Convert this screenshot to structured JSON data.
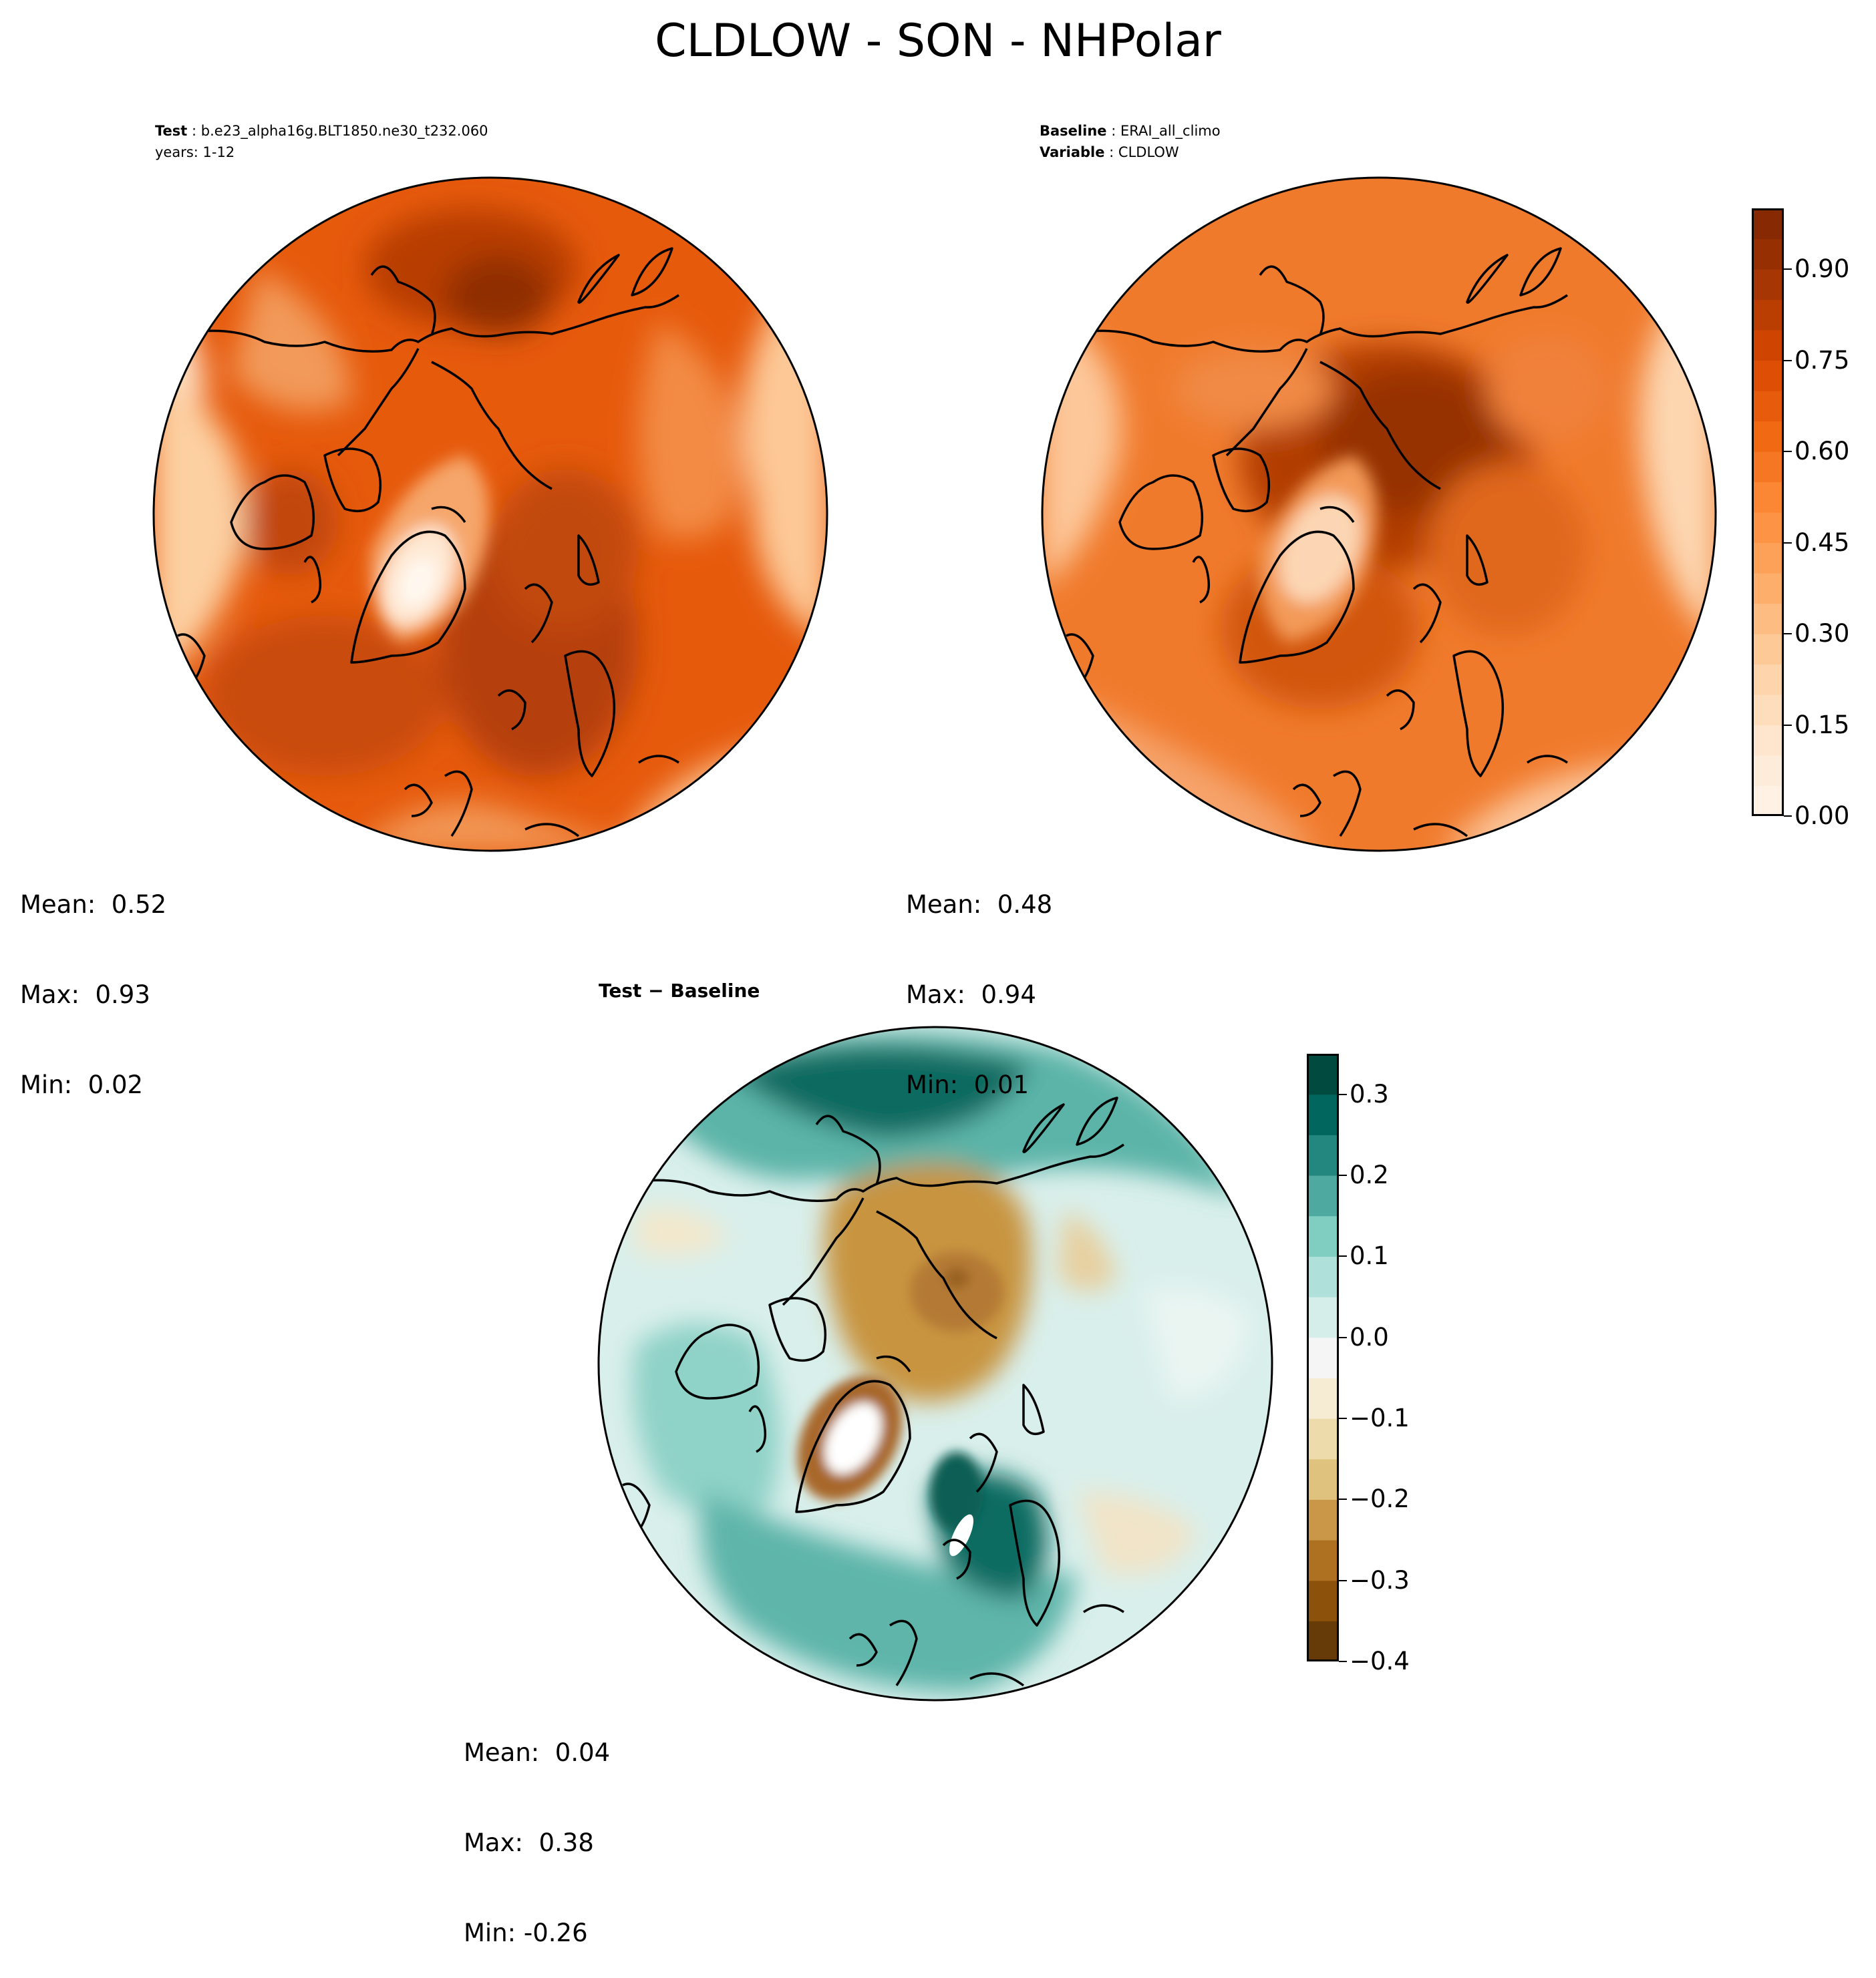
{
  "title": "CLDLOW - SON - NHPolar",
  "panels": {
    "test": {
      "line1_label": "Test",
      "line1_value": "b.e23_alpha16g.BLT1850.ne30_t232.060",
      "line2": "years: 1-12",
      "stats": {
        "mean": "Mean:  0.52",
        "max": "Max:  0.93",
        "min": "Min:  0.02"
      }
    },
    "baseline": {
      "line1_label": "Baseline",
      "line1_value": "ERAI_all_climo",
      "line2_label": "Variable",
      "line2_value": "CLDLOW",
      "stats": {
        "mean": "Mean:  0.48",
        "max": "Max:  0.94",
        "min": "Min:  0.01"
      }
    },
    "diff": {
      "header_left": "Test",
      "header_op": "−",
      "header_right": "Baseline",
      "stats": {
        "mean": "Mean:  0.04",
        "max": "Max:  0.38",
        "min": "Min: -0.26"
      }
    }
  },
  "colorbars": {
    "main": {
      "ticks": [
        "0.00",
        "0.15",
        "0.30",
        "0.45",
        "0.60",
        "0.75",
        "0.90"
      ],
      "tick_values": [
        0.0,
        0.15,
        0.3,
        0.45,
        0.6,
        0.75,
        0.9
      ],
      "range": [
        0.0,
        1.0
      ],
      "levels": 20,
      "colors": [
        "#fff5eb",
        "#fee6ce",
        "#fdd0a2",
        "#fdae6b",
        "#fd8d3c",
        "#f16913",
        "#d94801",
        "#a63603",
        "#7f2704"
      ]
    },
    "diff": {
      "ticks": [
        "0.3",
        "0.2",
        "0.1",
        "0.0",
        "−0.1",
        "−0.2",
        "−0.3",
        "−0.4"
      ],
      "tick_values": [
        0.3,
        0.2,
        0.1,
        0.0,
        -0.1,
        -0.2,
        -0.3,
        -0.4
      ],
      "range": [
        -0.4,
        0.35
      ],
      "levels": 15,
      "colors": [
        "#543005",
        "#8c510a",
        "#bf812d",
        "#dfc27d",
        "#f6e8c3",
        "#f5f5f5",
        "#c7eae5",
        "#80cdc1",
        "#35978f",
        "#01665e",
        "#003c30"
      ]
    }
  }
}
